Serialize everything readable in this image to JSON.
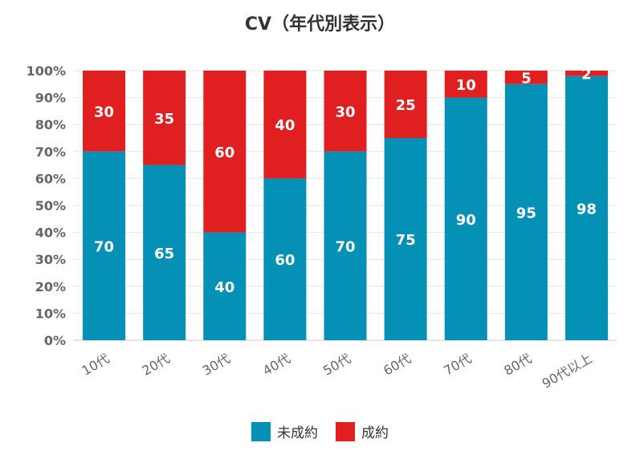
{
  "chart_data": {
    "type": "bar",
    "stacked": true,
    "title": "CV（年代別表示）",
    "categories": [
      "10代",
      "20代",
      "30代",
      "40代",
      "50代",
      "60代",
      "70代",
      "80代",
      "90代以上"
    ],
    "series": [
      {
        "name": "未成約",
        "color": "#0590b5",
        "values": [
          70,
          65,
          40,
          60,
          70,
          75,
          90,
          95,
          98
        ]
      },
      {
        "name": "成約",
        "color": "#e02020",
        "values": [
          30,
          35,
          60,
          40,
          30,
          25,
          10,
          5,
          2
        ]
      }
    ],
    "y_ticks": [
      "0%",
      "10%",
      "20%",
      "30%",
      "40%",
      "50%",
      "60%",
      "70%",
      "80%",
      "90%",
      "100%"
    ],
    "ylim": [
      0,
      100
    ],
    "grid": true,
    "legend_position": "bottom"
  }
}
